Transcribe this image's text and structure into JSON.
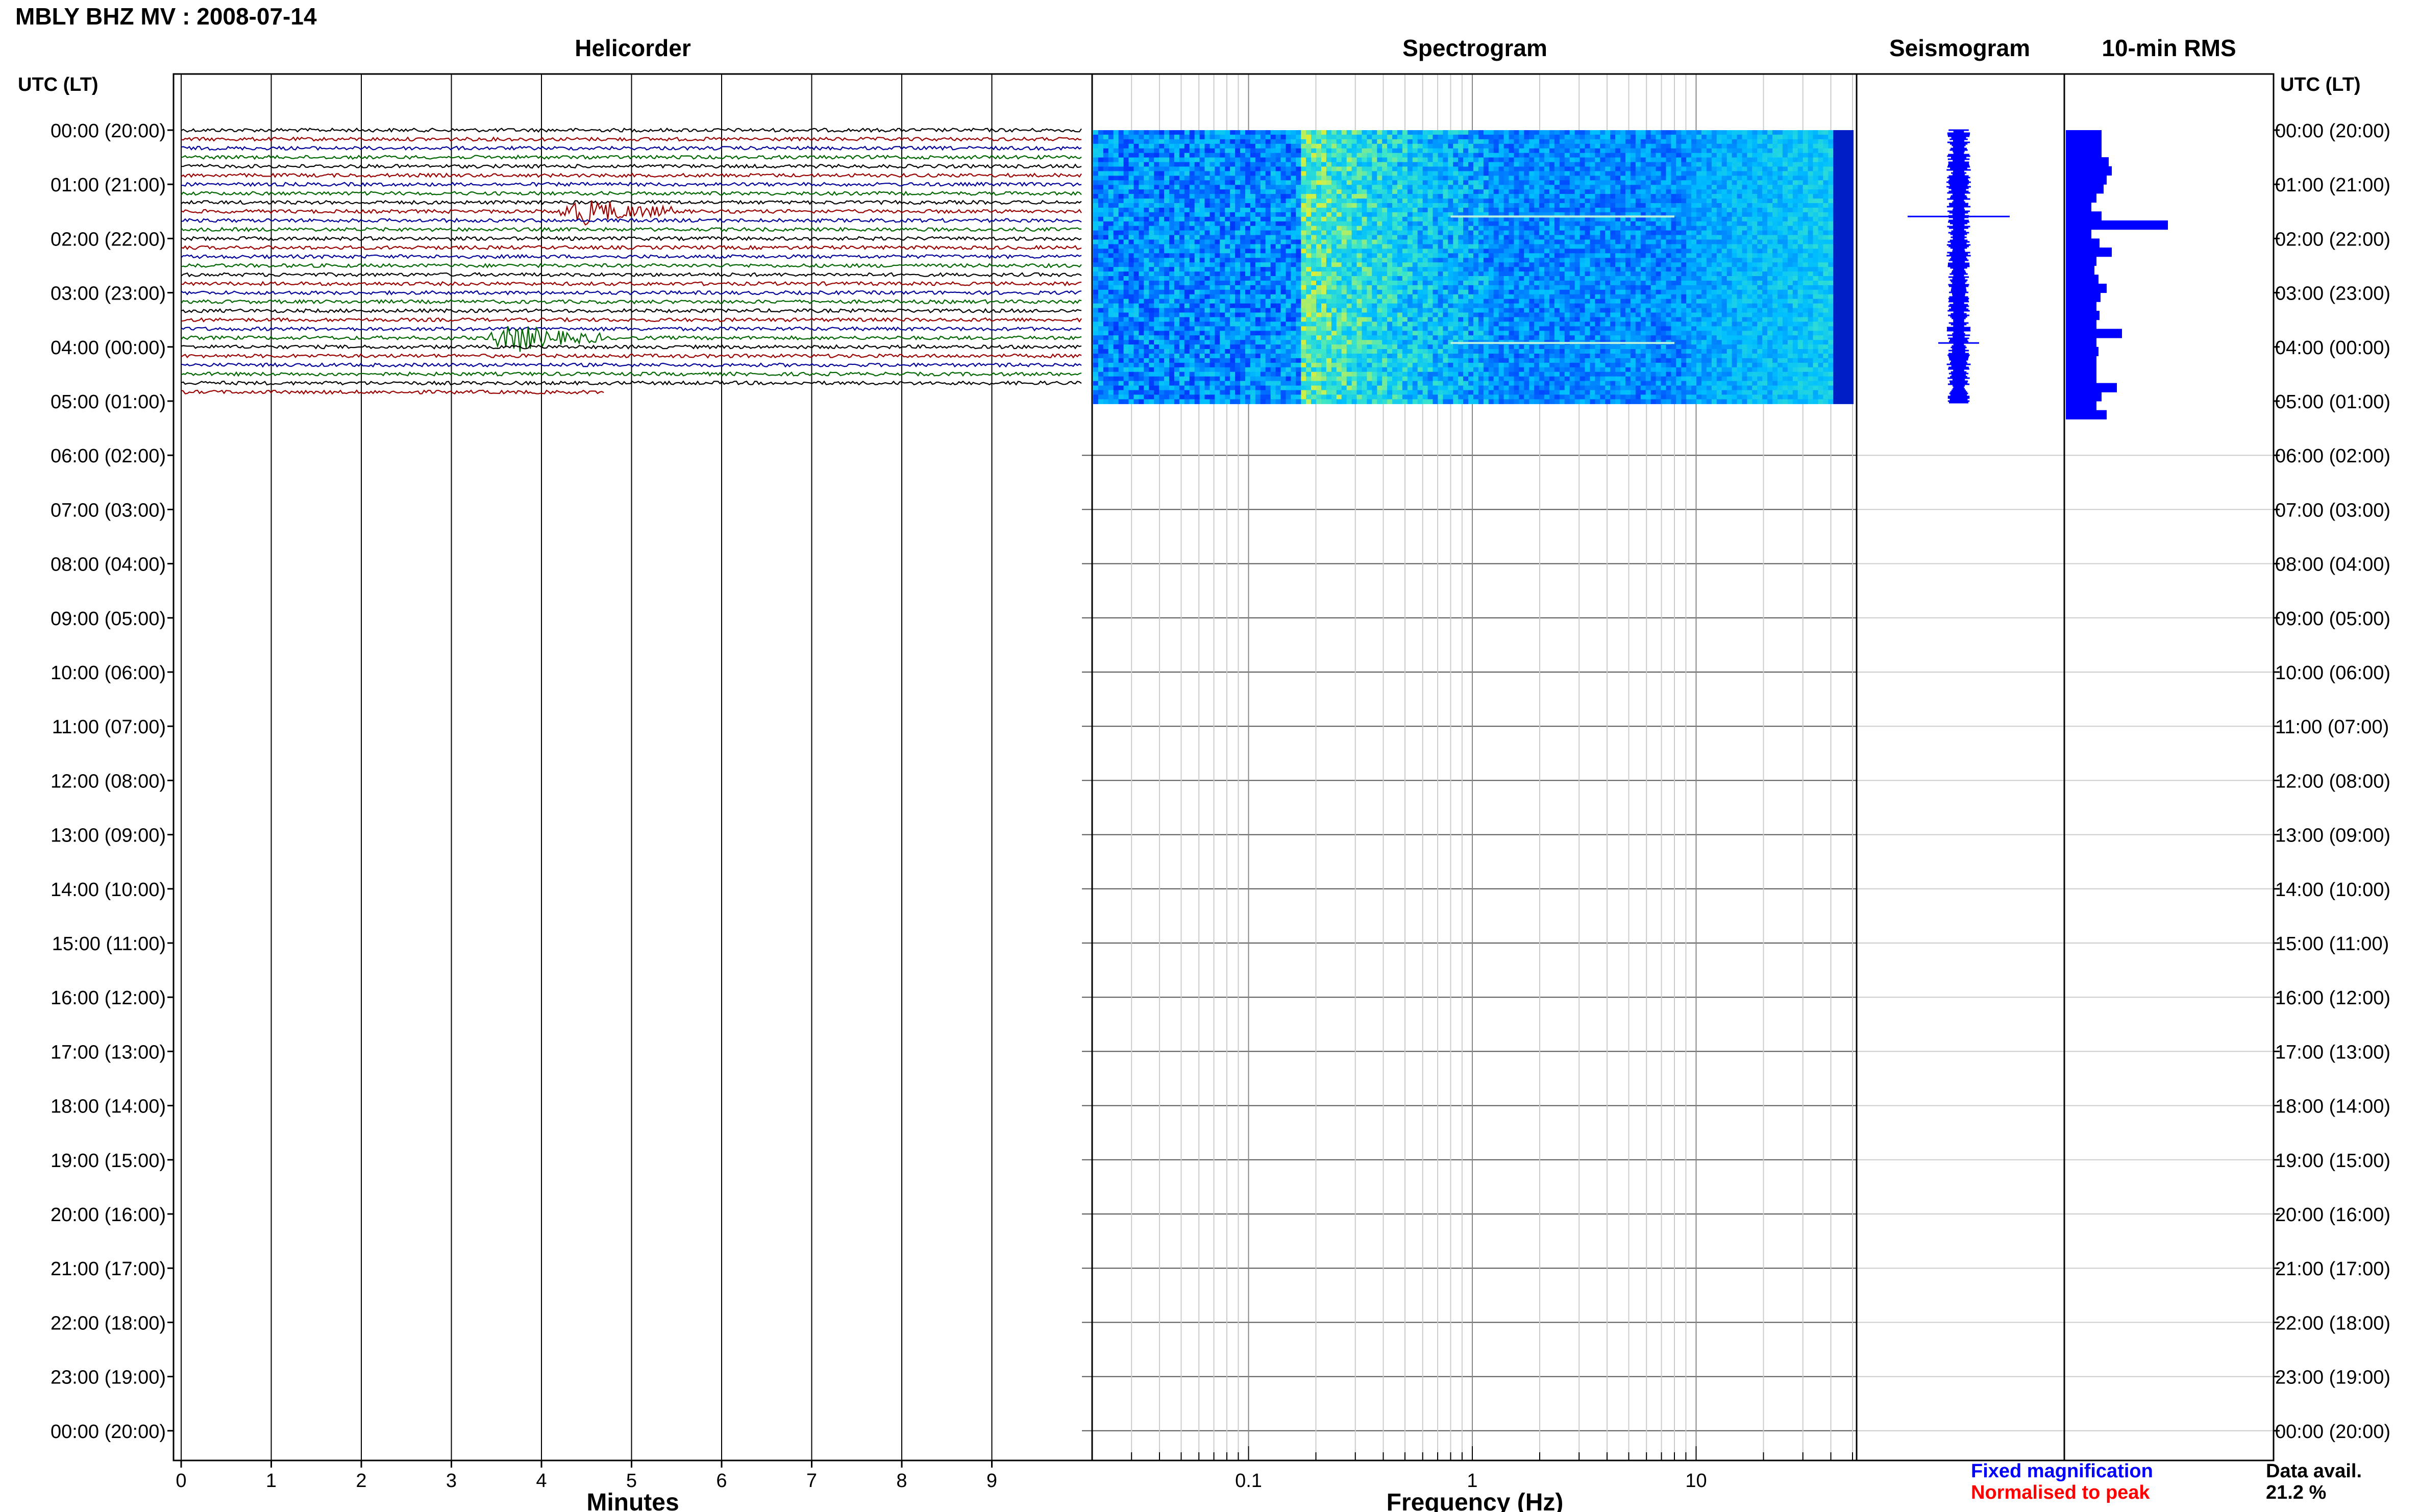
{
  "title": "MBLY BHZ MV : 2008-07-14",
  "time_axis_label": "UTC (LT)",
  "time_labels": [
    "00:00 (20:00)",
    "01:00 (21:00)",
    "02:00 (22:00)",
    "03:00 (23:00)",
    "04:00 (00:00)",
    "05:00 (01:00)",
    "06:00 (02:00)",
    "07:00 (03:00)",
    "08:00 (04:00)",
    "09:00 (05:00)",
    "10:00 (06:00)",
    "11:00 (07:00)",
    "12:00 (08:00)",
    "13:00 (09:00)",
    "14:00 (10:00)",
    "15:00 (11:00)",
    "16:00 (12:00)",
    "17:00 (13:00)",
    "18:00 (14:00)",
    "19:00 (15:00)",
    "20:00 (16:00)",
    "21:00 (17:00)",
    "22:00 (18:00)",
    "23:00 (19:00)",
    "00:00 (20:00)"
  ],
  "panels": {
    "helicorder": {
      "title": "Helicorder",
      "xlabel": "Minutes",
      "ticks": [
        "0",
        "1",
        "2",
        "3",
        "4",
        "5",
        "6",
        "7",
        "8",
        "9"
      ]
    },
    "spectrogram": {
      "title": "Spectrogram",
      "xlabel": "Frequency (Hz)",
      "ticks": [
        "0.1",
        "1",
        "10"
      ]
    },
    "seismogram": {
      "title": "Seismogram"
    },
    "rms": {
      "title": "10-min RMS"
    }
  },
  "legend": {
    "fixed": "Fixed magnification",
    "fixed_color": "#0000ff",
    "normalised": "Normalised to peak",
    "normalised_color": "#ff0000"
  },
  "data_avail": {
    "label": "Data avail.",
    "value": "21.2 %"
  },
  "colors": {
    "trace_cycle": [
      "#000000",
      "#990000",
      "#000099",
      "#006600"
    ],
    "seis": "#0000ff",
    "rms": "#0000ff"
  },
  "chart_data": {
    "type": "helicorder",
    "date": "2008-07-14",
    "hours_covered_utc": [
      0,
      5.05
    ],
    "helicorder_lines_per_hour": 6,
    "helicorder_minutes_range": [
      0,
      10
    ],
    "events": [
      {
        "time_utc": "01:30",
        "minute": 4.3
      },
      {
        "time_utc": "03:50",
        "minute": 3.5
      }
    ],
    "spectrogram_freq_range_hz": [
      0.02,
      50
    ],
    "spectrogram_log_scale": true,
    "rms_10min": [
      0.35,
      0.35,
      0.35,
      0.42,
      0.45,
      0.4,
      0.37,
      0.3,
      0.25,
      0.35,
      1.0,
      0.25,
      0.33,
      0.45,
      0.3,
      0.28,
      0.32,
      0.4,
      0.34,
      0.3,
      0.33,
      0.3,
      0.55,
      0.3,
      0.32,
      0.3,
      0.3,
      0.3,
      0.5,
      0.35,
      0.3,
      0.4
    ]
  }
}
